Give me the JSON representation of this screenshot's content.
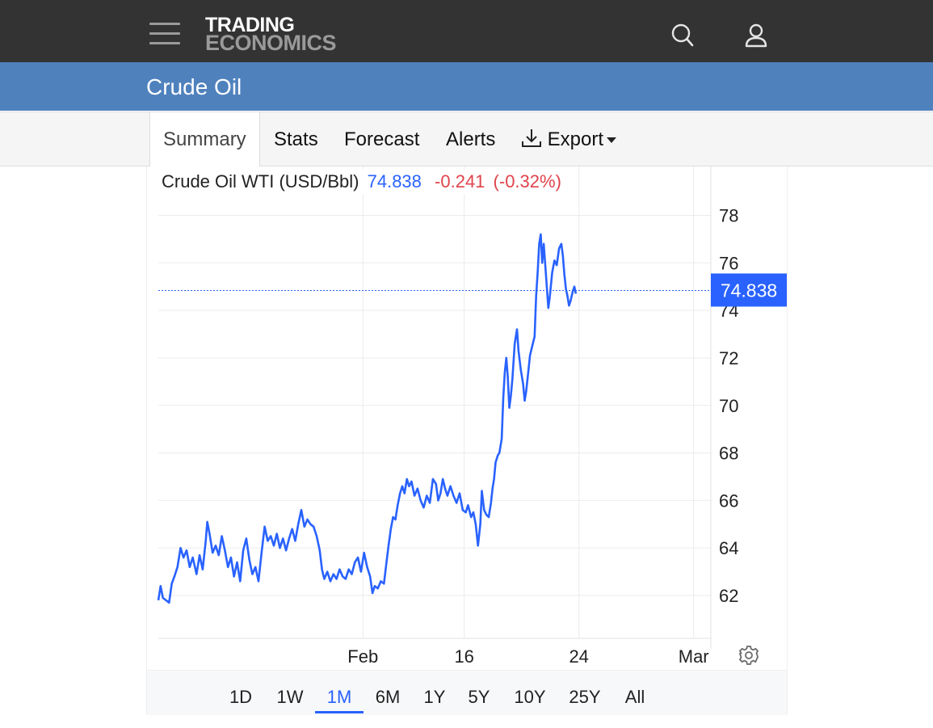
{
  "brand": {
    "line1": "TRADING",
    "line2": "ECONOMICS"
  },
  "header": {
    "title": "Crude Oil"
  },
  "tabs": [
    {
      "label": "Summary",
      "active": true
    },
    {
      "label": "Stats"
    },
    {
      "label": "Forecast"
    },
    {
      "label": "Alerts"
    },
    {
      "label": "Export",
      "icon": "download-icon",
      "dropdown": true
    }
  ],
  "legend": {
    "name": "Crude Oil WTI (USD/Bbl)",
    "price": "74.838",
    "change": "-0.241",
    "change_pct": "(-0.32%)"
  },
  "price_tag": "74.838",
  "ranges": [
    "1D",
    "1W",
    "1M",
    "6M",
    "1Y",
    "5Y",
    "10Y",
    "25Y",
    "All"
  ],
  "active_range": "1M",
  "colors": {
    "line": "#2962ff",
    "header": "#333333",
    "title_bar": "#4f81bd",
    "negative": "#e0434b"
  },
  "icons": {
    "menu": "hamburger-menu-icon",
    "search": "search-icon",
    "account": "user-icon",
    "settings": "gear-icon"
  },
  "chart_data": {
    "type": "line",
    "title": "Crude Oil WTI (USD/Bbl)",
    "ylim": [
      60.2,
      78.9
    ],
    "yticks": [
      62,
      64,
      66,
      68,
      70,
      72,
      74,
      76,
      78
    ],
    "xticks": [
      {
        "label": "Feb",
        "x": 5.35
      },
      {
        "label": "16",
        "x": 8.0
      },
      {
        "label": "24",
        "x": 11.0
      },
      {
        "label": "Mar",
        "x": 14.0
      }
    ],
    "xlim": [
      0,
      14.45
    ],
    "last_value": 74.838,
    "grid": true,
    "series": [
      {
        "values": [
          [
            0.0,
            61.8
          ],
          [
            0.06,
            62.4
          ],
          [
            0.12,
            61.9
          ],
          [
            0.2,
            61.8
          ],
          [
            0.28,
            61.7
          ],
          [
            0.35,
            62.5
          ],
          [
            0.42,
            62.8
          ],
          [
            0.5,
            63.2
          ],
          [
            0.58,
            64.0
          ],
          [
            0.66,
            63.6
          ],
          [
            0.74,
            63.9
          ],
          [
            0.82,
            63.2
          ],
          [
            0.9,
            63.6
          ],
          [
            1.0,
            62.9
          ],
          [
            1.08,
            63.7
          ],
          [
            1.16,
            63.1
          ],
          [
            1.24,
            64.3
          ],
          [
            1.28,
            65.1
          ],
          [
            1.34,
            64.6
          ],
          [
            1.42,
            63.8
          ],
          [
            1.5,
            64.1
          ],
          [
            1.58,
            63.7
          ],
          [
            1.66,
            64.5
          ],
          [
            1.74,
            63.9
          ],
          [
            1.82,
            63.2
          ],
          [
            1.9,
            63.6
          ],
          [
            1.98,
            62.8
          ],
          [
            2.06,
            63.4
          ],
          [
            2.14,
            62.6
          ],
          [
            2.22,
            63.9
          ],
          [
            2.3,
            64.4
          ],
          [
            2.38,
            63.5
          ],
          [
            2.46,
            62.9
          ],
          [
            2.54,
            63.2
          ],
          [
            2.62,
            62.6
          ],
          [
            2.7,
            63.8
          ],
          [
            2.78,
            64.9
          ],
          [
            2.86,
            64.3
          ],
          [
            2.94,
            64.5
          ],
          [
            3.02,
            64.1
          ],
          [
            3.1,
            64.6
          ],
          [
            3.18,
            64.0
          ],
          [
            3.26,
            64.4
          ],
          [
            3.34,
            63.9
          ],
          [
            3.42,
            64.4
          ],
          [
            3.5,
            64.8
          ],
          [
            3.58,
            64.3
          ],
          [
            3.66,
            65.0
          ],
          [
            3.74,
            65.6
          ],
          [
            3.82,
            64.9
          ],
          [
            3.9,
            65.2
          ],
          [
            3.98,
            65.0
          ],
          [
            4.06,
            64.9
          ],
          [
            4.14,
            64.5
          ],
          [
            4.22,
            63.9
          ],
          [
            4.28,
            63.1
          ],
          [
            4.34,
            62.7
          ],
          [
            4.42,
            63.0
          ],
          [
            4.5,
            62.6
          ],
          [
            4.58,
            62.9
          ],
          [
            4.66,
            62.7
          ],
          [
            4.74,
            63.1
          ],
          [
            4.82,
            62.8
          ],
          [
            4.9,
            62.7
          ],
          [
            4.98,
            63.1
          ],
          [
            5.06,
            62.9
          ],
          [
            5.14,
            63.4
          ],
          [
            5.22,
            63.6
          ],
          [
            5.3,
            63.0
          ],
          [
            5.38,
            63.8
          ],
          [
            5.46,
            63.2
          ],
          [
            5.54,
            62.8
          ],
          [
            5.6,
            62.1
          ],
          [
            5.66,
            62.4
          ],
          [
            5.74,
            62.3
          ],
          [
            5.82,
            62.6
          ],
          [
            5.9,
            62.5
          ],
          [
            5.96,
            63.3
          ],
          [
            6.02,
            64.1
          ],
          [
            6.08,
            64.8
          ],
          [
            6.14,
            65.3
          ],
          [
            6.2,
            65.2
          ],
          [
            6.26,
            65.8
          ],
          [
            6.32,
            66.3
          ],
          [
            6.38,
            66.6
          ],
          [
            6.44,
            66.3
          ],
          [
            6.5,
            66.9
          ],
          [
            6.56,
            66.6
          ],
          [
            6.62,
            66.8
          ],
          [
            6.7,
            66.2
          ],
          [
            6.78,
            66.5
          ],
          [
            6.86,
            66.0
          ],
          [
            6.94,
            65.7
          ],
          [
            7.02,
            66.2
          ],
          [
            7.1,
            65.9
          ],
          [
            7.18,
            66.9
          ],
          [
            7.26,
            66.7
          ],
          [
            7.32,
            66.0
          ],
          [
            7.38,
            66.3
          ],
          [
            7.44,
            66.9
          ],
          [
            7.5,
            66.5
          ],
          [
            7.56,
            66.2
          ],
          [
            7.64,
            66.6
          ],
          [
            7.72,
            66.2
          ],
          [
            7.8,
            65.9
          ],
          [
            7.88,
            66.3
          ],
          [
            7.96,
            65.6
          ],
          [
            8.04,
            65.5
          ],
          [
            8.1,
            65.8
          ],
          [
            8.18,
            65.3
          ],
          [
            8.24,
            65.5
          ],
          [
            8.3,
            65.0
          ],
          [
            8.36,
            64.1
          ],
          [
            8.42,
            65.0
          ],
          [
            8.46,
            66.4
          ],
          [
            8.52,
            65.6
          ],
          [
            8.58,
            65.4
          ],
          [
            8.64,
            65.3
          ],
          [
            8.7,
            65.9
          ],
          [
            8.74,
            66.5
          ],
          [
            8.78,
            66.9
          ],
          [
            8.82,
            67.6
          ],
          [
            8.88,
            67.9
          ],
          [
            8.92,
            68.0
          ],
          [
            8.98,
            68.6
          ],
          [
            9.02,
            70.3
          ],
          [
            9.06,
            71.4
          ],
          [
            9.1,
            72.0
          ],
          [
            9.14,
            71.2
          ],
          [
            9.18,
            69.9
          ],
          [
            9.22,
            70.4
          ],
          [
            9.26,
            71.1
          ],
          [
            9.32,
            72.6
          ],
          [
            9.38,
            73.2
          ],
          [
            9.42,
            72.3
          ],
          [
            9.48,
            71.5
          ],
          [
            9.54,
            70.9
          ],
          [
            9.58,
            70.2
          ],
          [
            9.62,
            70.6
          ],
          [
            9.66,
            71.2
          ],
          [
            9.72,
            72.1
          ],
          [
            9.78,
            72.5
          ],
          [
            9.84,
            72.9
          ],
          [
            9.88,
            74.6
          ],
          [
            9.92,
            75.6
          ],
          [
            9.96,
            76.8
          ],
          [
            10.0,
            77.2
          ],
          [
            10.04,
            76.0
          ],
          [
            10.08,
            76.8
          ],
          [
            10.12,
            75.9
          ],
          [
            10.16,
            75.0
          ],
          [
            10.2,
            74.1
          ],
          [
            10.24,
            74.6
          ],
          [
            10.3,
            75.6
          ],
          [
            10.36,
            76.1
          ],
          [
            10.42,
            75.9
          ],
          [
            10.48,
            76.6
          ],
          [
            10.54,
            76.8
          ],
          [
            10.58,
            76.3
          ],
          [
            10.62,
            75.5
          ],
          [
            10.66,
            74.9
          ],
          [
            10.7,
            74.6
          ],
          [
            10.74,
            74.2
          ],
          [
            10.78,
            74.4
          ],
          [
            10.84,
            74.8
          ],
          [
            10.88,
            75.0
          ],
          [
            10.92,
            74.7
          ]
        ]
      }
    ]
  }
}
